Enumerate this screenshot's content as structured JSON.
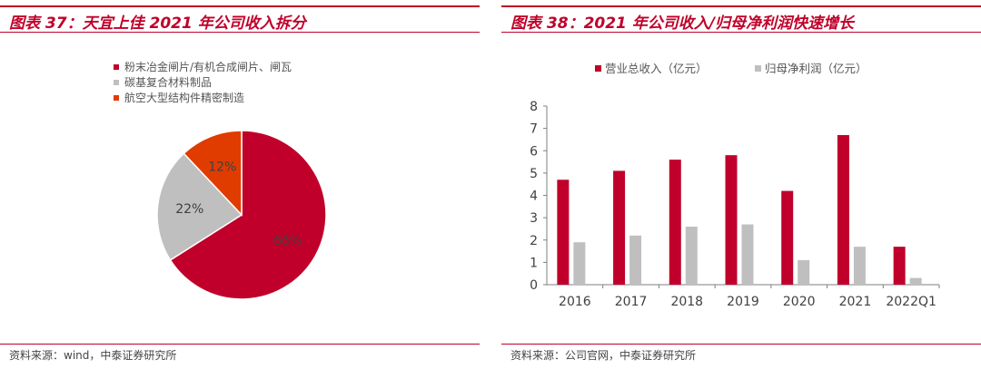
{
  "left_panel": {
    "title": "图表 37：天宜上佳 2021 年公司收入拆分",
    "source": "资料来源：wind，中泰证券研究所"
  },
  "right_panel": {
    "title": "图表 38：2021 年公司收入/归母净利润快速增长",
    "source": "资料来源：公司官网，中泰证券研究所"
  },
  "chart_data": [
    {
      "type": "pie",
      "title": "",
      "legend_position": "top",
      "slices": [
        {
          "name": "粉末冶金闸片/有机合成闸片、闸瓦",
          "value": 66,
          "label": "66%",
          "color": "#c0002a"
        },
        {
          "name": "碳基复合材料制品",
          "value": 22,
          "label": "22%",
          "color": "#bfbfbf"
        },
        {
          "name": "航空大型结构件精密制造",
          "value": 12,
          "label": "12%",
          "color": "#e03c00"
        }
      ]
    },
    {
      "type": "bar",
      "title": "",
      "legend_position": "top",
      "categories": [
        "2016",
        "2017",
        "2018",
        "2019",
        "2020",
        "2021",
        "2022Q1"
      ],
      "series": [
        {
          "name": "营业总收入（亿元）",
          "color": "#c0002a",
          "values": [
            4.7,
            5.1,
            5.6,
            5.8,
            4.2,
            6.7,
            1.7
          ]
        },
        {
          "name": "归母净利润（亿元）",
          "color": "#bfbfbf",
          "values": [
            1.9,
            2.2,
            2.6,
            2.7,
            1.1,
            1.7,
            0.3
          ]
        }
      ],
      "ylim": [
        0,
        8
      ],
      "yticks": [
        0,
        1,
        2,
        3,
        4,
        5,
        6,
        7,
        8
      ],
      "grid": false
    }
  ]
}
